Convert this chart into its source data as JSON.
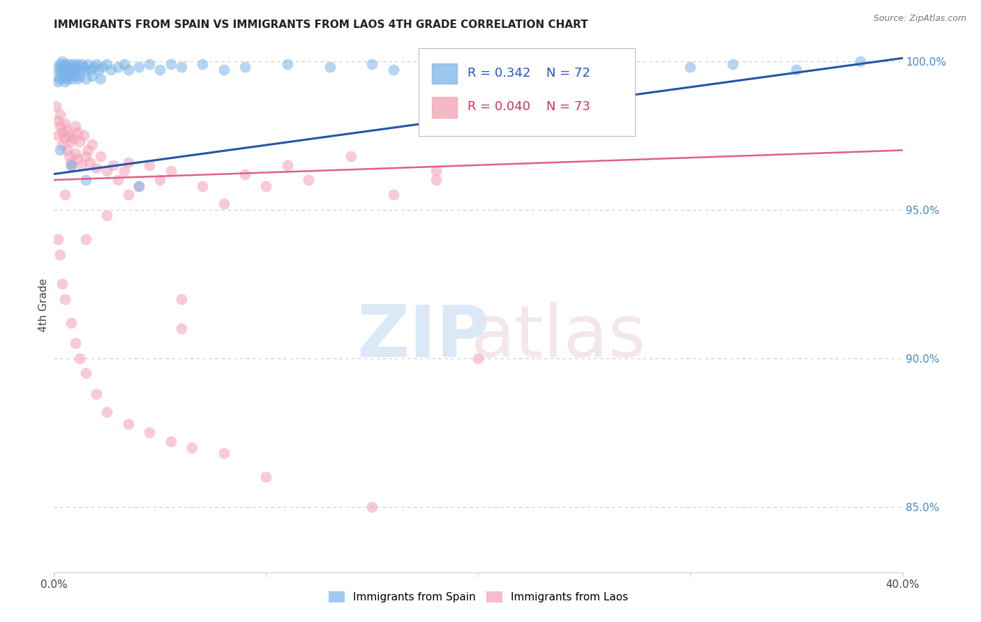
{
  "title": "IMMIGRANTS FROM SPAIN VS IMMIGRANTS FROM LAOS 4TH GRADE CORRELATION CHART",
  "source": "Source: ZipAtlas.com",
  "ylabel": "4th Grade",
  "xlim": [
    0.0,
    0.4
  ],
  "ylim": [
    0.828,
    1.008
  ],
  "ytick_vals_right": [
    1.0,
    0.95,
    0.9,
    0.85
  ],
  "spain_color": "#7ab3e8",
  "laos_color": "#f4a0b5",
  "spain_line_color": "#2255aa",
  "laos_line_color": "#e06080",
  "background_color": "#ffffff",
  "grid_color": "#cccccc",
  "right_axis_color": "#4488cc",
  "spain_R": "0.342",
  "spain_N": "72",
  "laos_R": "0.040",
  "laos_N": "73",
  "spain_trend_x": [
    0.0,
    0.4
  ],
  "spain_trend_y": [
    0.962,
    1.001
  ],
  "laos_trend_x": [
    0.0,
    0.4
  ],
  "laos_trend_y": [
    0.96,
    0.97
  ],
  "spain_x": [
    0.001,
    0.002,
    0.002,
    0.003,
    0.003,
    0.003,
    0.004,
    0.004,
    0.004,
    0.005,
    0.005,
    0.005,
    0.005,
    0.006,
    0.006,
    0.006,
    0.007,
    0.007,
    0.007,
    0.008,
    0.008,
    0.009,
    0.009,
    0.01,
    0.01,
    0.01,
    0.011,
    0.011,
    0.012,
    0.012,
    0.013,
    0.014,
    0.015,
    0.015,
    0.016,
    0.017,
    0.018,
    0.019,
    0.02,
    0.021,
    0.022,
    0.023,
    0.025,
    0.027,
    0.03,
    0.033,
    0.035,
    0.04,
    0.045,
    0.05,
    0.055,
    0.06,
    0.07,
    0.08,
    0.09,
    0.11,
    0.13,
    0.15,
    0.16,
    0.175,
    0.2,
    0.22,
    0.25,
    0.27,
    0.3,
    0.32,
    0.35,
    0.003,
    0.008,
    0.015,
    0.04,
    0.38
  ],
  "spain_y": [
    0.995,
    0.998,
    0.993,
    0.997,
    0.999,
    0.994,
    0.998,
    0.996,
    1.0,
    0.997,
    0.999,
    0.995,
    0.993,
    0.998,
    0.996,
    0.994,
    0.999,
    0.997,
    0.995,
    0.998,
    0.994,
    0.999,
    0.996,
    0.998,
    0.995,
    0.997,
    0.999,
    0.994,
    0.997,
    0.995,
    0.999,
    0.998,
    0.997,
    0.994,
    0.999,
    0.997,
    0.995,
    0.998,
    0.999,
    0.997,
    0.994,
    0.998,
    0.999,
    0.997,
    0.998,
    0.999,
    0.997,
    0.998,
    0.999,
    0.997,
    0.999,
    0.998,
    0.999,
    0.997,
    0.998,
    0.999,
    0.998,
    0.999,
    0.997,
    0.999,
    0.998,
    0.999,
    0.997,
    0.999,
    0.998,
    0.999,
    0.997,
    0.97,
    0.965,
    0.96,
    0.958,
    1.0
  ],
  "laos_x": [
    0.001,
    0.002,
    0.002,
    0.003,
    0.003,
    0.004,
    0.004,
    0.005,
    0.005,
    0.006,
    0.006,
    0.007,
    0.007,
    0.008,
    0.008,
    0.009,
    0.01,
    0.01,
    0.011,
    0.011,
    0.012,
    0.013,
    0.014,
    0.015,
    0.016,
    0.017,
    0.018,
    0.02,
    0.022,
    0.025,
    0.028,
    0.03,
    0.033,
    0.035,
    0.04,
    0.045,
    0.05,
    0.055,
    0.06,
    0.07,
    0.08,
    0.09,
    0.1,
    0.11,
    0.12,
    0.14,
    0.16,
    0.18,
    0.2,
    0.002,
    0.003,
    0.004,
    0.005,
    0.008,
    0.01,
    0.012,
    0.015,
    0.02,
    0.025,
    0.035,
    0.045,
    0.055,
    0.065,
    0.08,
    0.1,
    0.15,
    0.18,
    0.06,
    0.035,
    0.025,
    0.015,
    0.008,
    0.005
  ],
  "laos_y": [
    0.985,
    0.98,
    0.975,
    0.982,
    0.978,
    0.976,
    0.972,
    0.979,
    0.974,
    0.977,
    0.97,
    0.975,
    0.968,
    0.973,
    0.966,
    0.974,
    0.978,
    0.969,
    0.976,
    0.967,
    0.973,
    0.965,
    0.975,
    0.968,
    0.97,
    0.966,
    0.972,
    0.964,
    0.968,
    0.963,
    0.965,
    0.96,
    0.963,
    0.966,
    0.958,
    0.965,
    0.96,
    0.963,
    0.92,
    0.958,
    0.952,
    0.962,
    0.958,
    0.965,
    0.96,
    0.968,
    0.955,
    0.963,
    0.9,
    0.94,
    0.935,
    0.925,
    0.92,
    0.912,
    0.905,
    0.9,
    0.895,
    0.888,
    0.882,
    0.878,
    0.875,
    0.872,
    0.87,
    0.868,
    0.86,
    0.85,
    0.96,
    0.91,
    0.955,
    0.948,
    0.94,
    0.965,
    0.955
  ]
}
